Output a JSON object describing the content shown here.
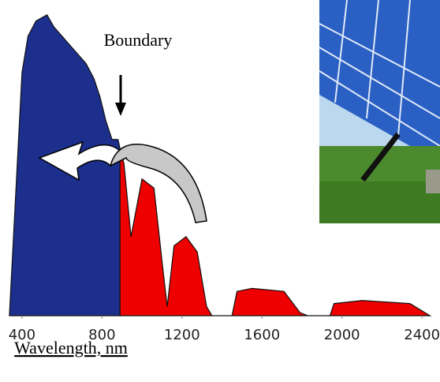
{
  "chart_data": {
    "type": "area",
    "annotation": "Boundary",
    "x_label": "Wavelength, nm",
    "xlim": [
      290,
      2490
    ],
    "ylim": [
      0,
      100
    ],
    "xticks": [
      400,
      800,
      1200,
      1600,
      2000,
      2400
    ],
    "series": [
      {
        "color": "#1c2f8c",
        "x": [
          337,
          400,
          430,
          470,
          525,
          560,
          600,
          640,
          680,
          720,
          760,
          790,
          820,
          850,
          880,
          890,
          890
        ],
        "values": [
          0,
          80,
          92,
          97,
          99,
          95,
          92,
          89,
          86,
          83,
          78,
          72,
          64,
          58,
          58,
          55,
          0
        ]
      },
      {
        "color": "#ee0000",
        "x": [
          890,
          910,
          945,
          1000,
          1060,
          1100,
          1126,
          1160,
          1220,
          1276,
          1323,
          1350,
          1450,
          1475,
          1550,
          1710,
          1790,
          1830,
          1940,
          1960,
          2100,
          2340,
          2440
        ],
        "values": [
          55,
          50,
          26,
          45,
          42,
          18,
          3,
          23,
          26,
          21,
          3,
          0,
          0,
          8,
          9,
          8,
          1,
          0,
          0,
          4,
          5,
          4,
          0
        ]
      }
    ]
  }
}
